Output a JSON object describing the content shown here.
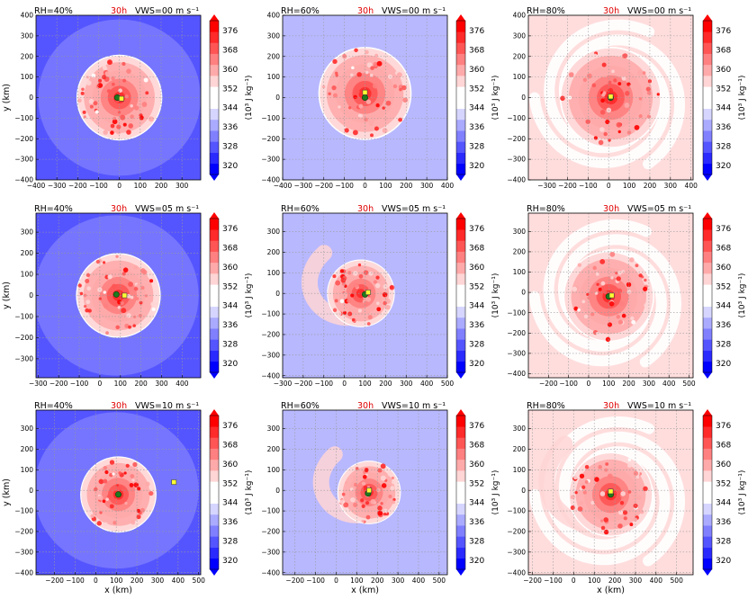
{
  "figure": {
    "time_label": "30h",
    "time_color": "#e00000",
    "colorbar_label": "(10³ J kg⁻¹)",
    "colorbar_ticks": [
      376,
      368,
      360,
      352,
      344,
      336,
      328,
      320
    ],
    "colorbar_range": [
      316,
      380
    ],
    "colorbar_colors": [
      "#0000ff",
      "#2a2aff",
      "#5555ff",
      "#8080ff",
      "#aaaaff",
      "#d5d5ff",
      "#ffffff",
      "#ffffff",
      "#ffd5d5",
      "#ffaaaa",
      "#ff8080",
      "#ff5555",
      "#ff2a2a",
      "#ff0000"
    ],
    "ylabel": "y (km)",
    "xlabel": "x (km)",
    "marker_colors": {
      "green": "#1e7a1e",
      "yellow": "#ffff33"
    }
  },
  "chart_data": [
    {
      "type": "heatmap",
      "row": 0,
      "col": 0,
      "rh": "RH=40%",
      "vws": "VWS=00 m s⁻¹",
      "xlim": [
        -400,
        390
      ],
      "ylim": [
        -400,
        400
      ],
      "xticks": [
        -400,
        -300,
        -200,
        -100,
        0,
        100,
        200,
        300
      ],
      "yticks": [
        400,
        300,
        200,
        100,
        0,
        -100,
        -200,
        -300,
        -400
      ],
      "background": "#5555ff",
      "outer": {
        "cx": 0,
        "cy": 0,
        "rx": 390,
        "ry": 380,
        "color": "#8080ff"
      },
      "core": {
        "cx": 0,
        "cy": 0,
        "r": 200
      },
      "green": [
        -10,
        0
      ],
      "yellow": [
        10,
        -5
      ]
    },
    {
      "type": "heatmap",
      "row": 0,
      "col": 1,
      "rh": "RH=60%",
      "vws": "VWS=00 m s⁻¹",
      "xlim": [
        -400,
        400
      ],
      "ylim": [
        -400,
        400
      ],
      "xticks": [
        -400,
        -300,
        -200,
        -100,
        0,
        100,
        200,
        300,
        400
      ],
      "yticks": [
        400,
        300,
        200,
        100,
        0,
        -100,
        -200,
        -300,
        -400
      ],
      "background": "#b8b8ff",
      "core": {
        "cx": 0,
        "cy": 20,
        "r": 220
      },
      "green": [
        0,
        0
      ],
      "yellow": [
        0,
        25
      ]
    },
    {
      "type": "heatmap",
      "row": 0,
      "col": 2,
      "rh": "RH=80%",
      "vws": "VWS=00 m s⁻¹",
      "xlim": [
        -390,
        410
      ],
      "ylim": [
        -400,
        400
      ],
      "xticks": [
        -300,
        -200,
        -100,
        0,
        100,
        200,
        300,
        400
      ],
      "yticks": [
        400,
        300,
        200,
        100,
        0,
        -100,
        -200,
        -300,
        -400
      ],
      "background": "#ffdddd",
      "spiral_white": true,
      "core": {
        "cx": 10,
        "cy": 0,
        "r": 240
      },
      "green": [
        10,
        0
      ],
      "yellow": [
        10,
        5
      ]
    },
    {
      "type": "heatmap",
      "row": 1,
      "col": 0,
      "rh": "RH=40%",
      "vws": "VWS=05 m s⁻¹",
      "xlim": [
        -310,
        490
      ],
      "ylim": [
        -390,
        390
      ],
      "xticks": [
        -300,
        -200,
        -100,
        0,
        100,
        200,
        300,
        400
      ],
      "yticks": [
        300,
        200,
        100,
        0,
        -100,
        -200,
        -300
      ],
      "background": "#5555ff",
      "outer": {
        "cx": 80,
        "cy": 0,
        "rx": 400,
        "ry": 380,
        "color": "#8080ff"
      },
      "core": {
        "cx": 90,
        "cy": 0,
        "r": 200
      },
      "green": [
        80,
        5
      ],
      "yellow": [
        120,
        0
      ]
    },
    {
      "type": "heatmap",
      "row": 1,
      "col": 1,
      "rh": "RH=60%",
      "vws": "VWS=05 m s⁻¹",
      "xlim": [
        -300,
        500
      ],
      "ylim": [
        -410,
        390
      ],
      "xticks": [
        -300,
        -200,
        -100,
        0,
        100,
        200,
        300,
        400,
        500
      ],
      "yticks": [
        300,
        200,
        100,
        0,
        -100,
        -200,
        -300,
        -400
      ],
      "background": "#b8b8ff",
      "core": {
        "cx": 80,
        "cy": 0,
        "r": 160
      },
      "tail": true,
      "green": [
        100,
        -5
      ],
      "yellow": [
        115,
        5
      ]
    },
    {
      "type": "heatmap",
      "row": 1,
      "col": 2,
      "rh": "RH=80%",
      "vws": "VWS=05 m s⁻¹",
      "xlim": [
        -300,
        520
      ],
      "ylim": [
        -420,
        390
      ],
      "xticks": [
        -200,
        -100,
        0,
        100,
        200,
        300,
        400,
        500
      ],
      "yticks": [
        300,
        200,
        100,
        0,
        -100,
        -200,
        -300,
        -400
      ],
      "background": "#ffdddd",
      "spiral_white": true,
      "core": {
        "cx": 100,
        "cy": -20,
        "r": 220
      },
      "green": [
        100,
        -20
      ],
      "yellow": [
        115,
        -15
      ]
    },
    {
      "type": "heatmap",
      "row": 2,
      "col": 0,
      "rh": "RH=40%",
      "vws": "VWS=10 m s⁻¹",
      "xlim": [
        -290,
        510
      ],
      "ylim": [
        -410,
        390
      ],
      "xticks": [
        -200,
        -100,
        0,
        100,
        200,
        300,
        400,
        500
      ],
      "yticks": [
        300,
        200,
        100,
        0,
        -100,
        -200,
        -300,
        -400
      ],
      "background": "#5555ff",
      "outer": {
        "cx": 100,
        "cy": 0,
        "rx": 400,
        "ry": 380,
        "color": "#8080ff"
      },
      "core": {
        "cx": 110,
        "cy": -20,
        "r": 180
      },
      "green": [
        110,
        -20
      ],
      "yellow": [
        380,
        40
      ]
    },
    {
      "type": "heatmap",
      "row": 2,
      "col": 1,
      "rh": "RH=60%",
      "vws": "VWS=10 m s⁻¹",
      "xlim": [
        -260,
        540
      ],
      "ylim": [
        -410,
        390
      ],
      "xticks": [
        -200,
        -100,
        0,
        100,
        200,
        300,
        400,
        500
      ],
      "yticks": [
        300,
        200,
        100,
        0,
        -100,
        -200,
        -300,
        -400
      ],
      "background": "#b8b8ff",
      "core": {
        "cx": 160,
        "cy": -10,
        "r": 150
      },
      "tail": true,
      "green": [
        155,
        -15
      ],
      "yellow": [
        160,
        0
      ]
    },
    {
      "type": "heatmap",
      "row": 2,
      "col": 2,
      "rh": "RH=80%",
      "vws": "VWS=10 m s⁻¹",
      "xlim": [
        -220,
        580
      ],
      "ylim": [
        -410,
        390
      ],
      "xticks": [
        -200,
        -100,
        0,
        100,
        200,
        300,
        400,
        500
      ],
      "yticks": [
        300,
        200,
        100,
        0,
        -100,
        -200,
        -300,
        -400
      ],
      "background": "#ffdddd",
      "spiral_white": true,
      "core": {
        "cx": 180,
        "cy": -20,
        "r": 200
      },
      "tail": true,
      "green": [
        180,
        -20
      ],
      "yellow": [
        180,
        -5
      ]
    }
  ]
}
